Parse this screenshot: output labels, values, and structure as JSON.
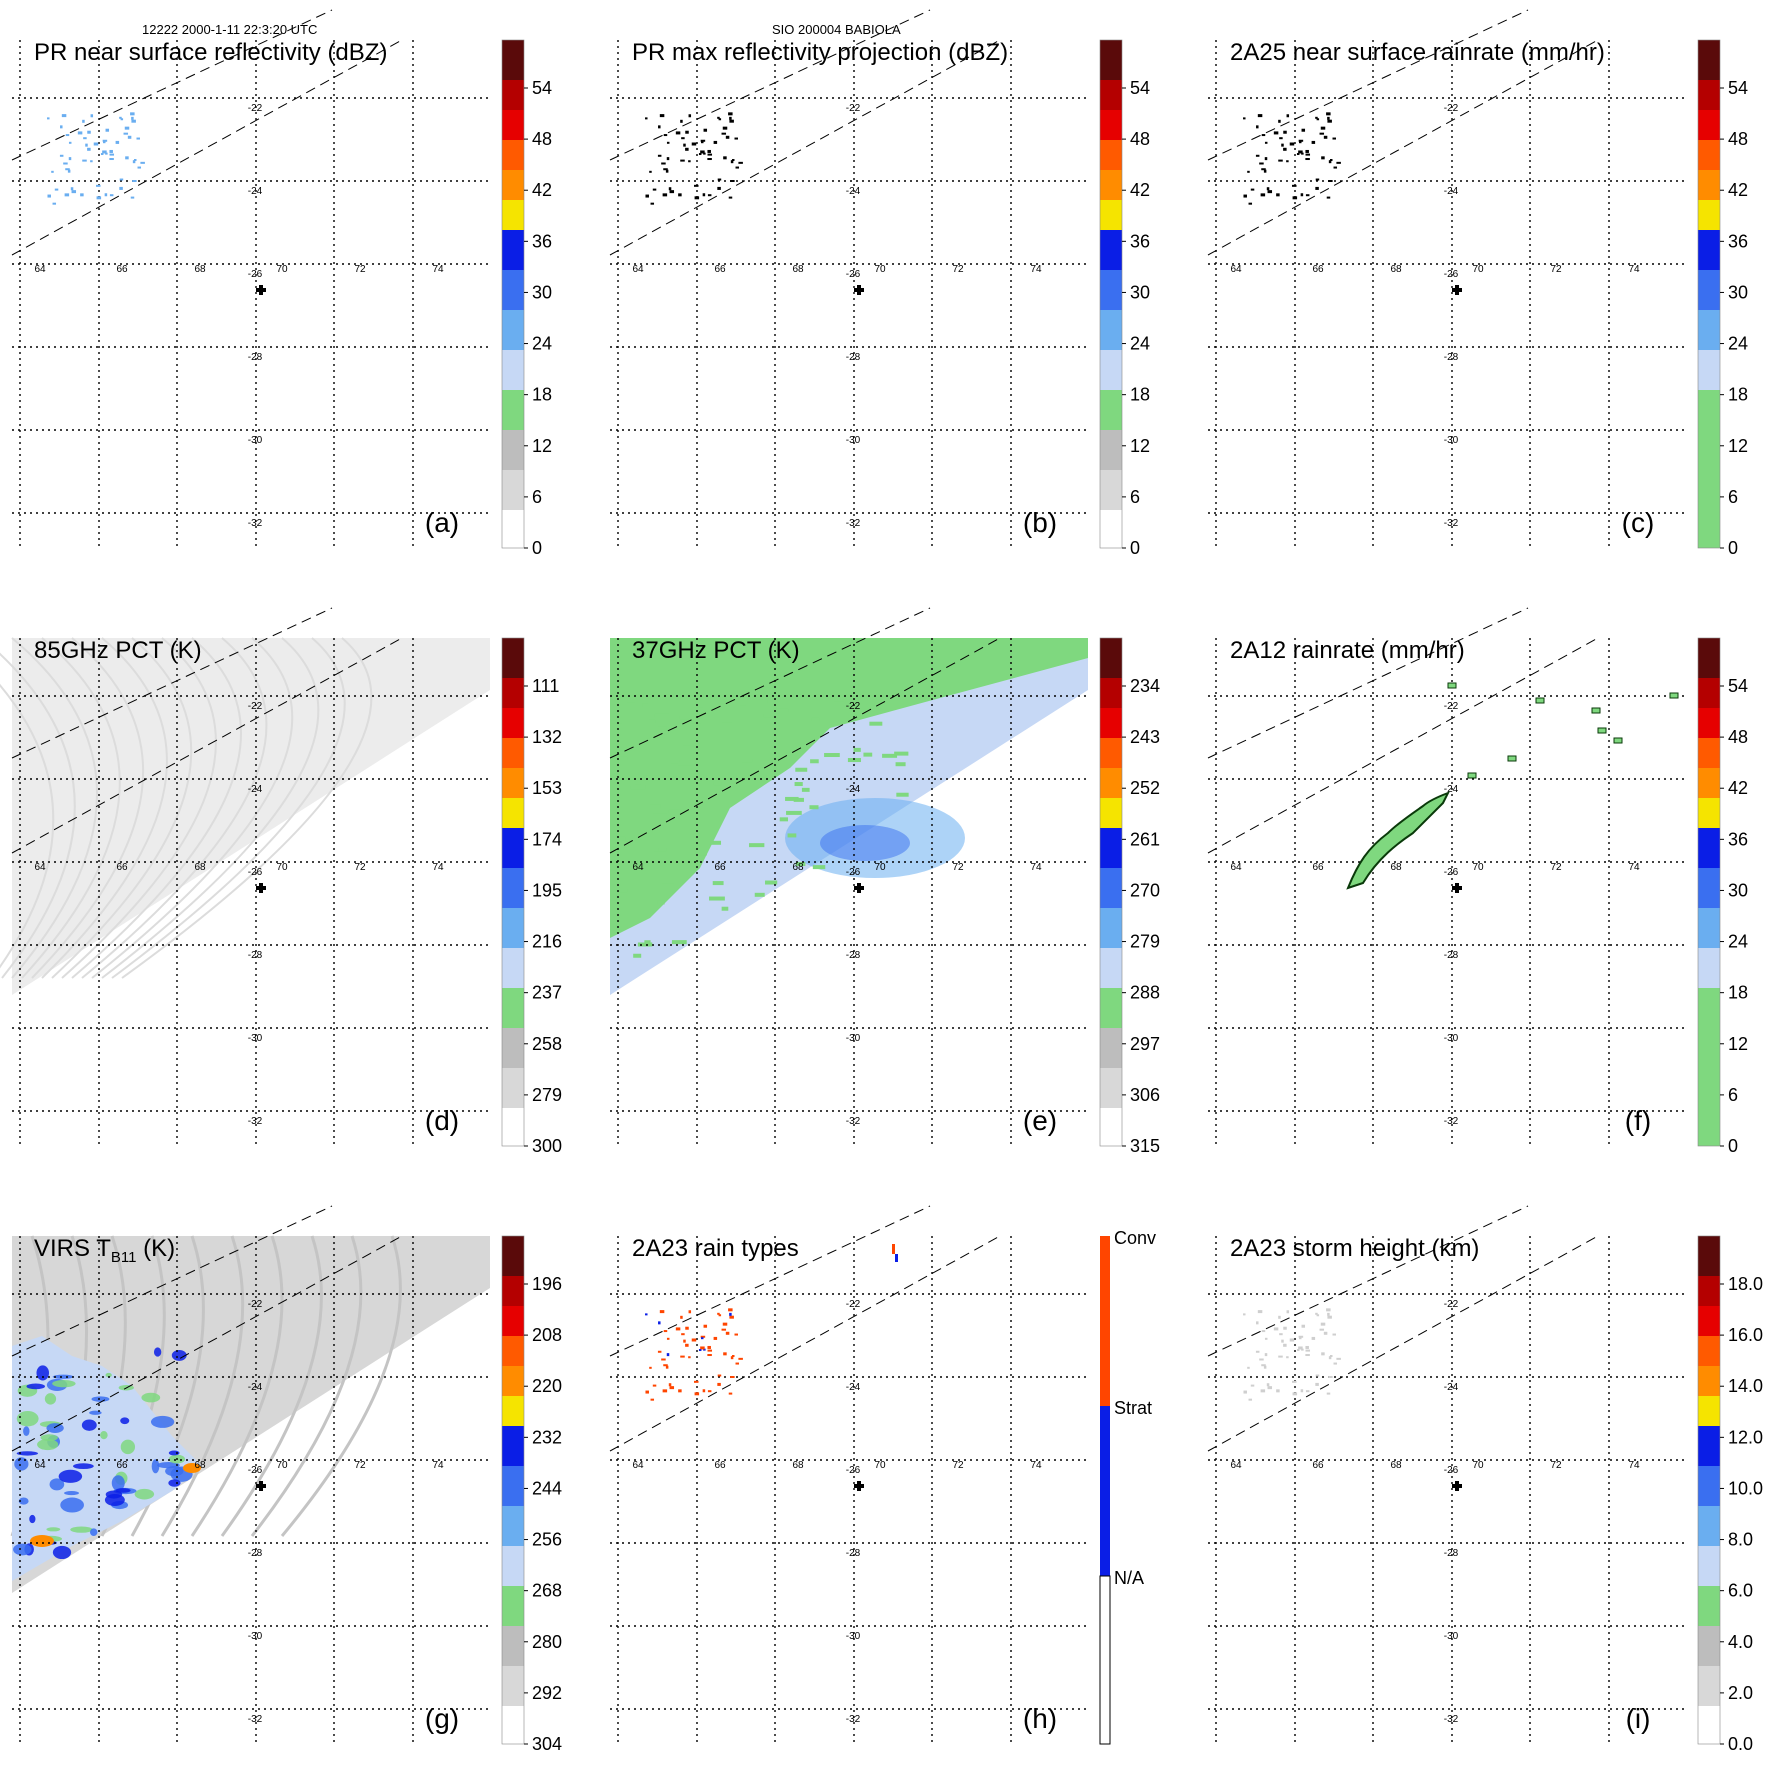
{
  "header": {
    "left": "12222 2000-1-11 22:3:20 UTC",
    "center": "SIO 200004 BABIOLA"
  },
  "lon_labels": [
    "64",
    "66",
    "68",
    "70",
    "72",
    "74"
  ],
  "lat_labels": [
    "-22",
    "-24",
    "-26",
    "-28",
    "-30",
    "-32"
  ],
  "colors": {
    "grid": "#000000",
    "white": "#ffffff",
    "light_gray": "#e6e6e6",
    "mid_gray": "#bdbdbd",
    "light_green": "#7fd87f",
    "light_blue": "#c6d8f5",
    "sky_blue": "#6aaef0",
    "mid_blue": "#3a6ff0",
    "blue": "#0a1ee6",
    "yellow": "#f5e400",
    "orange": "#ff8c00",
    "orange_red": "#ff5a00",
    "red": "#e60000",
    "dark_red": "#b40000",
    "maroon": "#5a0a0a",
    "conv": "#ff4500",
    "strat": "#0a1ee6"
  },
  "panels": [
    {
      "id": "a",
      "title": "PR near surface reflectivity (dBZ)",
      "label": "(a)",
      "cb_ticks": [
        "54",
        "48",
        "42",
        "36",
        "30",
        "24",
        "18",
        "12",
        "6",
        "0"
      ],
      "cb_type": "dbz"
    },
    {
      "id": "b",
      "title": "PR max reflectivity projection (dBZ)",
      "label": "(b)",
      "cb_ticks": [
        "54",
        "48",
        "42",
        "36",
        "30",
        "24",
        "18",
        "12",
        "6",
        "0"
      ],
      "cb_type": "dbz"
    },
    {
      "id": "c",
      "title": "2A25 near surface rainrate (mm/hr)",
      "label": "(c)",
      "cb_ticks": [
        "54",
        "48",
        "42",
        "36",
        "30",
        "24",
        "18",
        "12",
        "6",
        "0"
      ],
      "cb_type": "rain"
    },
    {
      "id": "d",
      "title": "85GHz PCT (K)",
      "label": "(d)",
      "cb_ticks": [
        "111",
        "132",
        "153",
        "174",
        "195",
        "216",
        "237",
        "258",
        "279",
        "300"
      ],
      "cb_type": "dbz"
    },
    {
      "id": "e",
      "title": "37GHz PCT (K)",
      "label": "(e)",
      "cb_ticks": [
        "234",
        "243",
        "252",
        "261",
        "270",
        "279",
        "288",
        "297",
        "306",
        "315"
      ],
      "cb_type": "dbz"
    },
    {
      "id": "f",
      "title": "2A12 rainrate (mm/hr)",
      "label": "(f)",
      "cb_ticks": [
        "54",
        "48",
        "42",
        "36",
        "30",
        "24",
        "18",
        "12",
        "6",
        "0"
      ],
      "cb_type": "rain"
    },
    {
      "id": "g",
      "title": "VIRS T",
      "title_sub": "B11",
      "title_tail": " (K)",
      "label": "(g)",
      "cb_ticks": [
        "196",
        "208",
        "220",
        "232",
        "244",
        "256",
        "268",
        "280",
        "292",
        "304"
      ],
      "cb_type": "dbz"
    },
    {
      "id": "h",
      "title": "2A23 rain types",
      "label": "(h)",
      "cb_ticks": [
        "Conv",
        "Strat",
        "N/A"
      ],
      "cb_type": "types"
    },
    {
      "id": "i",
      "title": "2A23 storm height (km)",
      "label": "(i)",
      "cb_ticks": [
        "18.0",
        "16.0",
        "14.0",
        "12.0",
        "10.0",
        "8.0",
        "6.0",
        "4.0",
        "2.0",
        "0.0"
      ],
      "cb_type": "dbz"
    }
  ]
}
